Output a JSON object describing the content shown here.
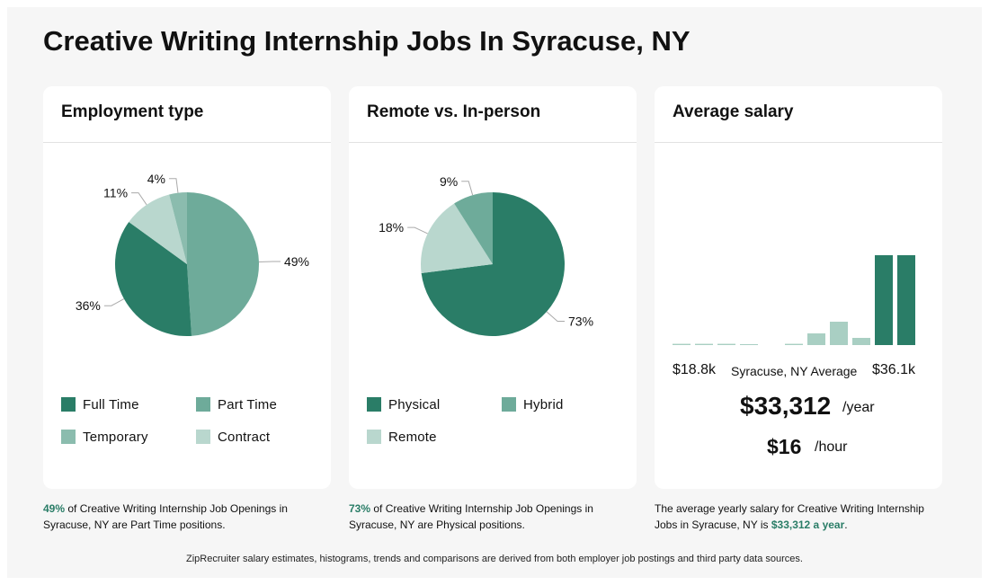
{
  "page": {
    "title": "Creative Writing Internship Jobs In Syracuse, NY"
  },
  "colors": {
    "full_time": "#2a7d67",
    "part_time": "#6eab9a",
    "temporary": "#8bbcae",
    "contract": "#b9d7ce",
    "physical": "#2a7d67",
    "hybrid": "#6eab9a",
    "remote": "#b9d7ce",
    "bar_highlight": "#2a7d67",
    "bar_normal": "#a9cfc3",
    "accent_text": "#2a7d67"
  },
  "employment": {
    "title": "Employment type",
    "legend": [
      "Full Time",
      "Part Time",
      "Temporary",
      "Contract"
    ],
    "caption_highlight": "49%",
    "caption_text": " of Creative Writing Internship Job Openings in Syracuse, NY are Part Time positions."
  },
  "remote": {
    "title": "Remote vs. In-person",
    "legend": [
      "Physical",
      "Hybrid",
      "Remote"
    ],
    "caption_highlight": "73%",
    "caption_text": " of Creative Writing Internship Job Openings in Syracuse, NY are Physical positions."
  },
  "salary": {
    "title": "Average salary",
    "min_label": "$18.8k",
    "mid_label": "Syracuse, NY Average",
    "max_label": "$36.1k",
    "yearly": "$33,312",
    "yearly_unit": "/year",
    "hourly": "$16",
    "hourly_unit": "/hour",
    "caption_text": "The average yearly salary for Creative Writing Internship Jobs in Syracuse, NY is ",
    "caption_highlight": "$33,312 a year",
    "caption_end": "."
  },
  "footer": "ZipRecruiter salary estimates, histograms, trends and comparisons are derived from both employer job postings and third party data sources.",
  "chart_data": [
    {
      "type": "pie",
      "title": "Employment type",
      "categories": [
        "Part Time",
        "Full Time",
        "Contract",
        "Temporary"
      ],
      "values": [
        49,
        36,
        11,
        4
      ],
      "labels": [
        "49%",
        "36%",
        "11%",
        "4%"
      ],
      "legend_placement": "bottom"
    },
    {
      "type": "pie",
      "title": "Remote vs. In-person",
      "categories": [
        "Physical",
        "Remote",
        "Hybrid"
      ],
      "values": [
        73,
        18,
        9
      ],
      "labels": [
        "73%",
        "18%",
        "9%"
      ],
      "legend_placement": "bottom"
    },
    {
      "type": "bar",
      "title": "Average salary",
      "x_range_labels": [
        "$18.8k",
        "$36.1k"
      ],
      "values": [
        0.7,
        0.7,
        0.7,
        0.3,
        0,
        0.7,
        6.5,
        13,
        4,
        50,
        50
      ],
      "highlighted": [
        false,
        false,
        false,
        false,
        false,
        false,
        false,
        false,
        false,
        true,
        true
      ],
      "grid": false
    }
  ]
}
